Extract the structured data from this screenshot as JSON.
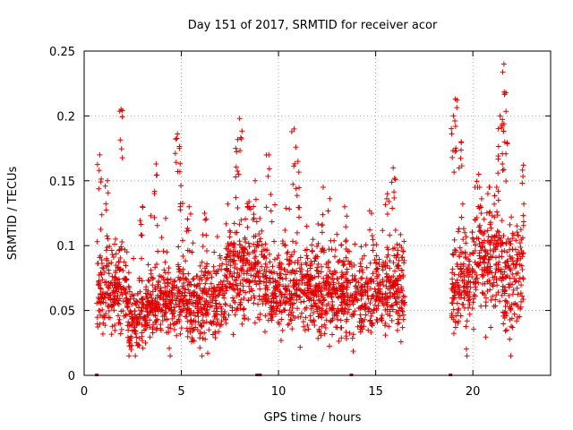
{
  "chart_data": {
    "type": "scatter",
    "title": "Day 151 of 2017, SRMTID for receiver acor",
    "xlabel": "GPS time / hours",
    "ylabel": "SRMTID / TECUs",
    "xlim": [
      0,
      24
    ],
    "ylim": [
      0,
      0.25
    ],
    "xticks": [
      0,
      5,
      10,
      15,
      20
    ],
    "yticks": [
      0,
      0.05,
      0.1,
      0.15,
      0.2,
      0.25
    ],
    "xtick_labels": [
      "0",
      "5",
      "10",
      "15",
      "20"
    ],
    "ytick_labels": [
      "0",
      "0.05",
      "0.1",
      "0.15",
      "0.2",
      "0.25"
    ],
    "grid": true,
    "marker": "+",
    "color": "#e00000",
    "segments": [
      {
        "start": 0.65,
        "end": 2.2,
        "base": 0.068,
        "spread": 0.028,
        "peaks": [
          [
            0.8,
            0.17
          ],
          [
            1.9,
            0.205
          ],
          [
            1.2,
            0.15
          ]
        ]
      },
      {
        "start": 2.2,
        "end": 3.2,
        "base": 0.045,
        "spread": 0.022,
        "peaks": [
          [
            3.0,
            0.13
          ]
        ]
      },
      {
        "start": 3.2,
        "end": 5.2,
        "base": 0.06,
        "spread": 0.025,
        "peaks": [
          [
            3.7,
            0.163
          ],
          [
            4.8,
            0.186
          ],
          [
            4.9,
            0.175
          ]
        ]
      },
      {
        "start": 5.2,
        "end": 7.3,
        "base": 0.055,
        "spread": 0.025,
        "peaks": [
          [
            5.4,
            0.13
          ],
          [
            6.2,
            0.125
          ]
        ]
      },
      {
        "start": 7.3,
        "end": 9.3,
        "base": 0.08,
        "spread": 0.03,
        "peaks": [
          [
            8.0,
            0.198
          ],
          [
            7.8,
            0.175
          ],
          [
            8.8,
            0.15
          ]
        ]
      },
      {
        "start": 9.3,
        "end": 12.0,
        "base": 0.067,
        "spread": 0.027,
        "peaks": [
          [
            9.5,
            0.17
          ],
          [
            10.8,
            0.19
          ],
          [
            11.0,
            0.165
          ]
        ]
      },
      {
        "start": 12.0,
        "end": 14.8,
        "base": 0.062,
        "spread": 0.026,
        "peaks": [
          [
            12.3,
            0.145
          ],
          [
            13.4,
            0.13
          ]
        ]
      },
      {
        "start": 14.8,
        "end": 16.5,
        "base": 0.07,
        "spread": 0.03,
        "peaks": [
          [
            15.9,
            0.16
          ],
          [
            15.6,
            0.14
          ]
        ]
      },
      {
        "start": 18.9,
        "end": 20.2,
        "base": 0.075,
        "spread": 0.035,
        "peaks": [
          [
            19.1,
            0.213
          ],
          [
            19.0,
            0.2
          ],
          [
            19.4,
            0.18
          ]
        ]
      },
      {
        "start": 20.2,
        "end": 21.5,
        "base": 0.09,
        "spread": 0.035,
        "peaks": [
          [
            20.3,
            0.155
          ],
          [
            21.4,
            0.2
          ]
        ]
      },
      {
        "start": 21.5,
        "end": 22.6,
        "base": 0.075,
        "spread": 0.035,
        "peaks": [
          [
            21.6,
            0.24
          ],
          [
            21.7,
            0.218
          ],
          [
            21.6,
            0.194
          ],
          [
            22.6,
            0.162
          ]
        ]
      }
    ],
    "zero_markers_x": [
      0.65,
      8.9,
      9.05,
      13.75,
      18.85
    ]
  }
}
